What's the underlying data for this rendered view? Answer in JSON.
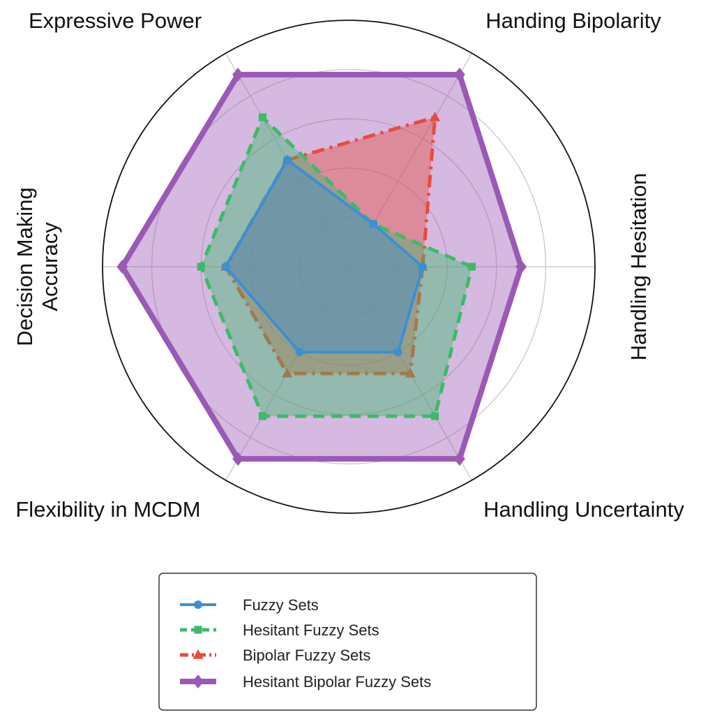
{
  "chart_data": {
    "type": "radar",
    "axes": [
      "Handling Hesitation",
      "Handing Bipolarity",
      "Expressive Power",
      "Decision Making Accuracy",
      "Flexibility in MCDM",
      "Handling Uncertainty"
    ],
    "axis_label_lines": [
      [
        "Handling Hesitation"
      ],
      [
        "Handing Bipolarity"
      ],
      [
        "Expressive Power"
      ],
      [
        "Decision Making",
        "Accuracy"
      ],
      [
        "Flexibility in MCDM"
      ],
      [
        "Handling Uncertainty"
      ]
    ],
    "range": [
      0,
      5
    ],
    "ring_values": [
      1,
      2,
      3,
      4
    ],
    "grid": true,
    "legend_position": "bottom-center",
    "series": [
      {
        "name": "Hesitant Bipolar Fuzzy Sets",
        "values": [
          3.5,
          4.5,
          4.5,
          4.6,
          4.5,
          4.5
        ],
        "color": "#9b59b6",
        "line_style": "solid",
        "marker": "diamond",
        "fill": true
      },
      {
        "name": "Bipolar Fuzzy Sets",
        "values": [
          1.5,
          3.5,
          2.5,
          2.5,
          2.5,
          2.5
        ],
        "color": "#e74c3c",
        "line_style": "dashdot",
        "marker": "triangle",
        "fill": true
      },
      {
        "name": "Hesitant Fuzzy Sets",
        "values": [
          2.5,
          1.0,
          3.5,
          3.0,
          3.5,
          3.5
        ],
        "color": "#3cba6a",
        "line_style": "dashed",
        "marker": "square",
        "fill": true
      },
      {
        "name": "Fuzzy Sets",
        "values": [
          1.5,
          1.0,
          2.5,
          2.5,
          2.0,
          2.0
        ],
        "color": "#3a8fd6",
        "line_style": "solid",
        "marker": "circle",
        "fill": true
      }
    ],
    "legend_order": [
      "Fuzzy Sets",
      "Hesitant Fuzzy Sets",
      "Bipolar Fuzzy Sets",
      "Hesitant Bipolar Fuzzy Sets"
    ]
  }
}
